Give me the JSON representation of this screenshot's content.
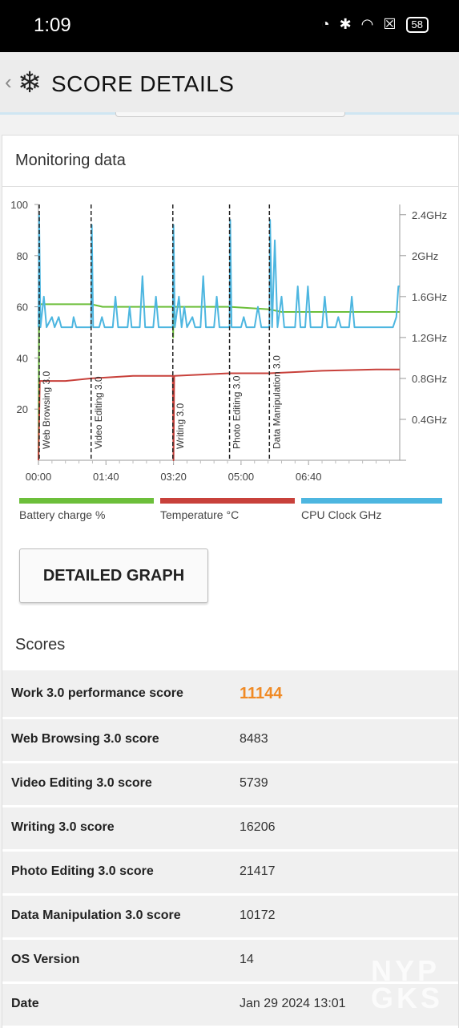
{
  "status_bar": {
    "time": "1:09",
    "battery": "58"
  },
  "header": {
    "title": "SCORE DETAILS"
  },
  "monitoring": {
    "title": "Monitoring data"
  },
  "chart_data": {
    "type": "line",
    "x_ticks": [
      "00:00",
      "01:40",
      "03:20",
      "05:00",
      "06:40"
    ],
    "y_left_ticks": [
      "20",
      "40",
      "60",
      "80",
      "100"
    ],
    "y_right_ticks": [
      "0.4GHz",
      "0.8GHz",
      "1.2GHz",
      "1.6GHz",
      "2GHz",
      "2.4GHz"
    ],
    "ylim_left": [
      0,
      100
    ],
    "ylim_right_ghz": [
      0,
      2.5
    ],
    "xlim_seconds": [
      0,
      535
    ],
    "markers": [
      {
        "label": "Web Browsing 3.0",
        "t": 0
      },
      {
        "label": "Video Editing 3.0",
        "t": 78
      },
      {
        "label": "Writing 3.0",
        "t": 199
      },
      {
        "label": "Photo Editing 3.0",
        "t": 283
      },
      {
        "label": "Data Manipulation 3.0",
        "t": 342
      }
    ],
    "series": [
      {
        "name": "Battery charge %",
        "color": "#6cbf3a",
        "points": [
          [
            0,
            0
          ],
          [
            1,
            61
          ],
          [
            78,
            61
          ],
          [
            95,
            60
          ],
          [
            199,
            60
          ],
          [
            199.5,
            48
          ],
          [
            200,
            60
          ],
          [
            283,
            60
          ],
          [
            342,
            59
          ],
          [
            360,
            58
          ],
          [
            535,
            58
          ]
        ]
      },
      {
        "name": "Temperature °C",
        "color": "#c8413b",
        "points": [
          [
            0,
            0
          ],
          [
            2,
            31
          ],
          [
            40,
            31
          ],
          [
            78,
            32
          ],
          [
            140,
            33
          ],
          [
            199,
            33
          ],
          [
            200,
            0
          ],
          [
            201,
            33
          ],
          [
            283,
            34
          ],
          [
            342,
            34
          ],
          [
            420,
            35
          ],
          [
            500,
            35.5
          ],
          [
            535,
            35.5
          ]
        ]
      },
      {
        "name": "CPU Clock GHz",
        "color": "#4db6e0",
        "points": [
          [
            0,
            1.3
          ],
          [
            1,
            2.4
          ],
          [
            3,
            1.3
          ],
          [
            8,
            1.6
          ],
          [
            12,
            1.3
          ],
          [
            20,
            1.4
          ],
          [
            24,
            1.3
          ],
          [
            30,
            1.4
          ],
          [
            34,
            1.3
          ],
          [
            50,
            1.3
          ],
          [
            52,
            1.4
          ],
          [
            56,
            1.3
          ],
          [
            78,
            1.3
          ],
          [
            79,
            2.3
          ],
          [
            81,
            1.3
          ],
          [
            90,
            1.3
          ],
          [
            94,
            1.4
          ],
          [
            98,
            1.3
          ],
          [
            110,
            1.3
          ],
          [
            114,
            1.6
          ],
          [
            118,
            1.3
          ],
          [
            132,
            1.3
          ],
          [
            135,
            1.5
          ],
          [
            138,
            1.3
          ],
          [
            150,
            1.3
          ],
          [
            154,
            1.8
          ],
          [
            158,
            1.3
          ],
          [
            170,
            1.3
          ],
          [
            174,
            1.6
          ],
          [
            178,
            1.3
          ],
          [
            199,
            1.3
          ],
          [
            200,
            2.3
          ],
          [
            202,
            1.3
          ],
          [
            208,
            1.6
          ],
          [
            212,
            1.3
          ],
          [
            216,
            1.5
          ],
          [
            220,
            1.3
          ],
          [
            228,
            1.4
          ],
          [
            232,
            1.3
          ],
          [
            240,
            1.3
          ],
          [
            244,
            1.8
          ],
          [
            248,
            1.3
          ],
          [
            260,
            1.3
          ],
          [
            264,
            1.6
          ],
          [
            268,
            1.3
          ],
          [
            283,
            1.3
          ],
          [
            284,
            2.35
          ],
          [
            286,
            1.3
          ],
          [
            300,
            1.3
          ],
          [
            304,
            1.4
          ],
          [
            308,
            1.3
          ],
          [
            320,
            1.3
          ],
          [
            325,
            1.5
          ],
          [
            330,
            1.3
          ],
          [
            342,
            1.3
          ],
          [
            343,
            2.35
          ],
          [
            346,
            1.3
          ],
          [
            350,
            2.15
          ],
          [
            354,
            1.3
          ],
          [
            360,
            1.6
          ],
          [
            364,
            1.3
          ],
          [
            380,
            1.3
          ],
          [
            384,
            1.7
          ],
          [
            388,
            1.3
          ],
          [
            395,
            1.3
          ],
          [
            399,
            1.7
          ],
          [
            403,
            1.3
          ],
          [
            420,
            1.3
          ],
          [
            424,
            1.6
          ],
          [
            428,
            1.3
          ],
          [
            440,
            1.3
          ],
          [
            444,
            1.4
          ],
          [
            448,
            1.3
          ],
          [
            460,
            1.3
          ],
          [
            464,
            1.6
          ],
          [
            468,
            1.3
          ],
          [
            525,
            1.3
          ],
          [
            530,
            1.4
          ],
          [
            533,
            1.7
          ],
          [
            535,
            1.7
          ]
        ]
      }
    ]
  },
  "legend": [
    {
      "label": "Battery charge %",
      "color": "#6cbf3a"
    },
    {
      "label": "Temperature °C",
      "color": "#c8413b"
    },
    {
      "label": "CPU Clock GHz",
      "color": "#4db6e0"
    }
  ],
  "detailed_button": "DETAILED GRAPH",
  "scores": {
    "title": "Scores",
    "rows": [
      {
        "label": "Work 3.0 performance score",
        "value": "11144"
      },
      {
        "label": "Web Browsing 3.0 score",
        "value": "8483"
      },
      {
        "label": "Video Editing 3.0 score",
        "value": "5739"
      },
      {
        "label": "Writing 3.0 score",
        "value": "16206"
      },
      {
        "label": "Photo Editing 3.0 score",
        "value": "21417"
      },
      {
        "label": "Data Manipulation 3.0 score",
        "value": "10172"
      },
      {
        "label": "OS Version",
        "value": "14"
      },
      {
        "label": "Date",
        "value": "Jan 29 2024 13:01"
      }
    ]
  },
  "watermark": {
    "line1": "NYP",
    "line2": "GKS"
  }
}
